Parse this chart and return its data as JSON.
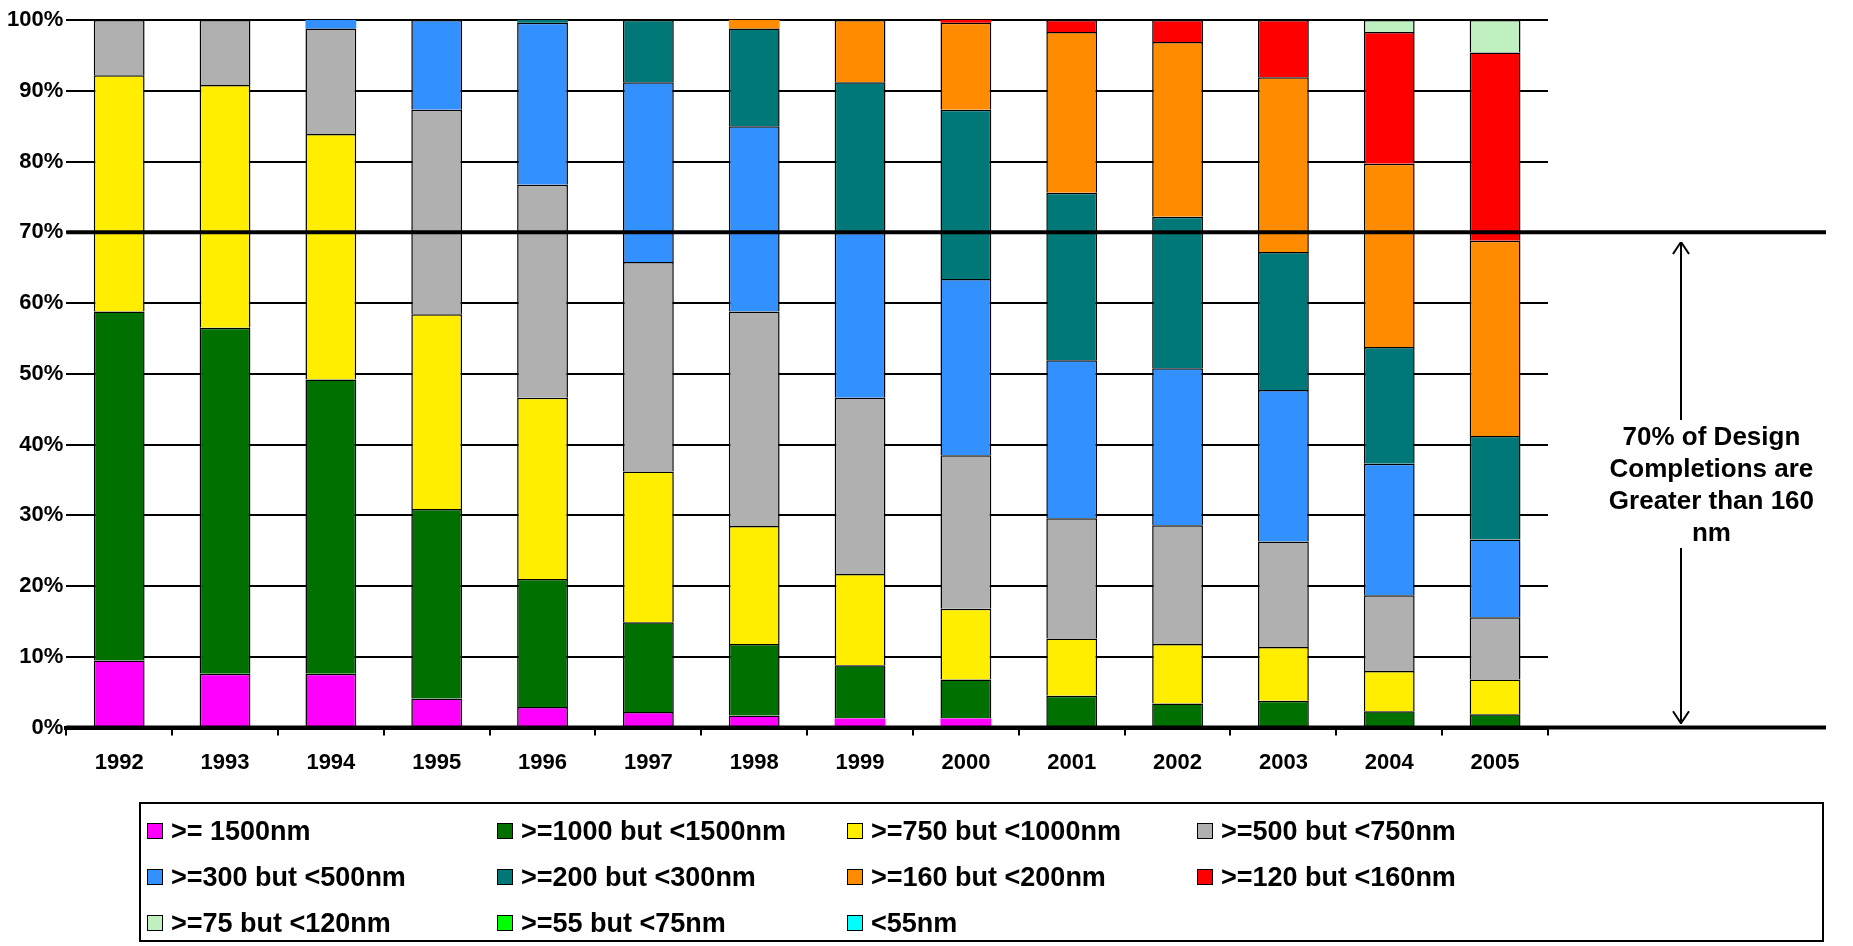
{
  "chart_data": {
    "type": "bar",
    "stacked": true,
    "categories": [
      "1992",
      "1993",
      "1994",
      "1995",
      "1996",
      "1997",
      "1998",
      "1999",
      "2000",
      "2001",
      "2002",
      "2003",
      "2004",
      "2005"
    ],
    "series": [
      {
        "name": ">= 1500nm",
        "color": "#ff00ff",
        "values": [
          9.5,
          7.6,
          7.6,
          4.1,
          2.9,
          2.2,
          1.7,
          1.3,
          1.3,
          0,
          0,
          0,
          0,
          0
        ]
      },
      {
        "name": ">=1000 but <1500nm",
        "color": "#007000",
        "values": [
          49.3,
          48.9,
          41.6,
          26.8,
          18.1,
          12.7,
          10.1,
          7.5,
          5.5,
          4.5,
          3.4,
          3.8,
          2.3,
          1.9
        ]
      },
      {
        "name": ">=750 but <1000nm",
        "color": "#ffee00",
        "values": [
          33.4,
          34.3,
          34.7,
          27.5,
          25.6,
          21.3,
          16.7,
          12.9,
          10.0,
          8.1,
          8.4,
          7.6,
          5.7,
          4.9
        ]
      },
      {
        "name": ">=500 but <750nm",
        "color": "#b0b0b0",
        "values": [
          7.8,
          9.2,
          14.9,
          28.9,
          30.1,
          29.6,
          30.3,
          24.9,
          21.7,
          17.0,
          16.8,
          14.9,
          10.7,
          8.8
        ]
      },
      {
        "name": ">=300 but <500nm",
        "color": "#3390ff",
        "values": [
          0,
          0,
          1.2,
          12.7,
          22.9,
          25.4,
          26.2,
          23.3,
          24.9,
          22.3,
          22.2,
          21.4,
          18.6,
          11.0
        ]
      },
      {
        "name": ">=200 but <300nm",
        "color": "#007878",
        "values": [
          0,
          0,
          0,
          0,
          0.4,
          8.8,
          13.8,
          21.3,
          23.9,
          23.7,
          21.4,
          19.5,
          16.5,
          14.6
        ]
      },
      {
        "name": ">=160 but <200nm",
        "color": "#ff8c00",
        "values": [
          0,
          0,
          0,
          0,
          0,
          0,
          1.2,
          8.8,
          12.3,
          22.7,
          24.7,
          24.7,
          25.9,
          27.6
        ]
      },
      {
        "name": ">=120 but <160nm",
        "color": "#ff0000",
        "values": [
          0,
          0,
          0,
          0,
          0,
          0,
          0,
          0,
          0.4,
          1.7,
          3.1,
          8.1,
          18.6,
          26.6
        ]
      },
      {
        "name": ">=75 but <120nm",
        "color": "#c0f0c0",
        "values": [
          0,
          0,
          0,
          0,
          0,
          0,
          0,
          0,
          0,
          0,
          0,
          0,
          1.7,
          4.6
        ]
      },
      {
        "name": ">=55 but <75nm",
        "color": "#00ff00",
        "values": [
          0,
          0,
          0,
          0,
          0,
          0,
          0,
          0,
          0,
          0,
          0,
          0,
          0,
          0
        ]
      },
      {
        "name": "<55nm",
        "color": "#00ffff",
        "values": [
          0,
          0,
          0,
          0,
          0,
          0,
          0,
          0,
          0,
          0,
          0,
          0,
          0,
          0
        ]
      }
    ],
    "ylim": [
      0,
      100
    ],
    "yticks": [
      {
        "value": 0,
        "label": "0%"
      },
      {
        "value": 10,
        "label": "10%"
      },
      {
        "value": 20,
        "label": "20%"
      },
      {
        "value": 30,
        "label": "30%"
      },
      {
        "value": 40,
        "label": "40%"
      },
      {
        "value": 50,
        "label": "50%"
      },
      {
        "value": 60,
        "label": "60%"
      },
      {
        "value": 70,
        "label": "70%"
      },
      {
        "value": 80,
        "label": "80%"
      },
      {
        "value": 90,
        "label": "90%"
      },
      {
        "value": 100,
        "label": "100%"
      }
    ],
    "grid": "y",
    "legend": "bottom",
    "ref_lines": [
      {
        "axis": "y",
        "value": 70,
        "color": "#000000"
      }
    ],
    "annotations": [
      "70% of Design Completions are Greater than 160 nm"
    ]
  }
}
